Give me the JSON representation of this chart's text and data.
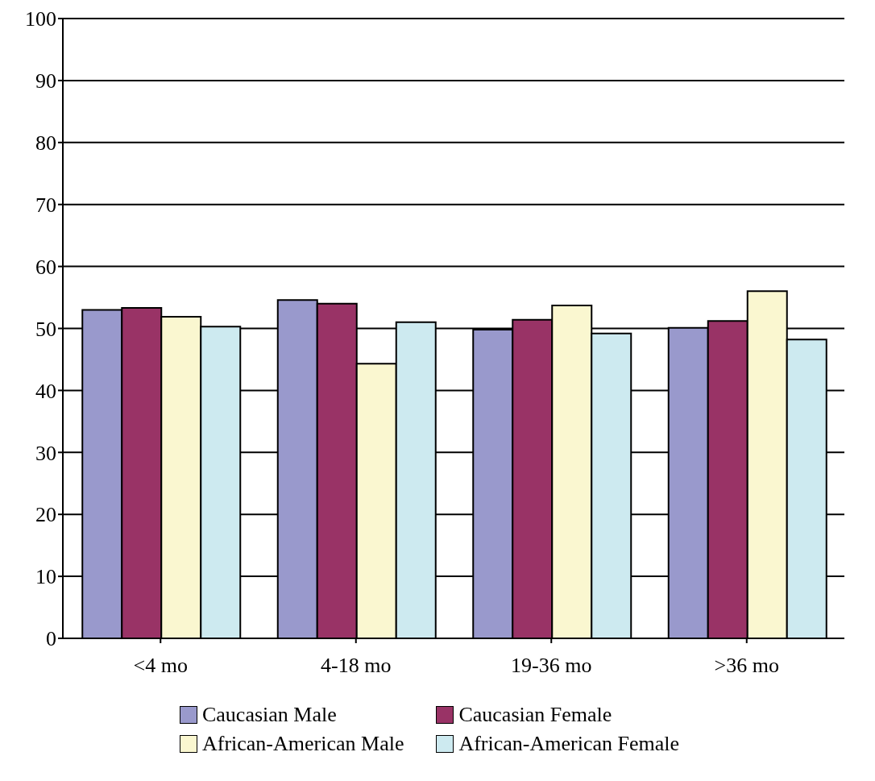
{
  "chart_data": {
    "type": "bar",
    "categories": [
      "<4 mo",
      "4-18 mo",
      "19-36 mo",
      ">36 mo"
    ],
    "series": [
      {
        "name": "Caucasian Male",
        "color": "#9999cc",
        "values": [
          53.0,
          54.6,
          49.8,
          50.1
        ]
      },
      {
        "name": "Caucasian Female",
        "color": "#993366",
        "values": [
          53.3,
          54.0,
          51.4,
          51.2
        ]
      },
      {
        "name": "African-American Male",
        "color": "#faf7d0",
        "values": [
          51.9,
          44.3,
          53.7,
          56.0
        ]
      },
      {
        "name": "African-American Female",
        "color": "#cdeaf0",
        "values": [
          50.3,
          51.0,
          49.2,
          48.2
        ]
      }
    ],
    "ylim": [
      0,
      100
    ],
    "yticks": [
      0,
      10,
      20,
      30,
      40,
      50,
      60,
      70,
      80,
      90,
      100
    ],
    "grid": "y",
    "legend": "bottom"
  }
}
